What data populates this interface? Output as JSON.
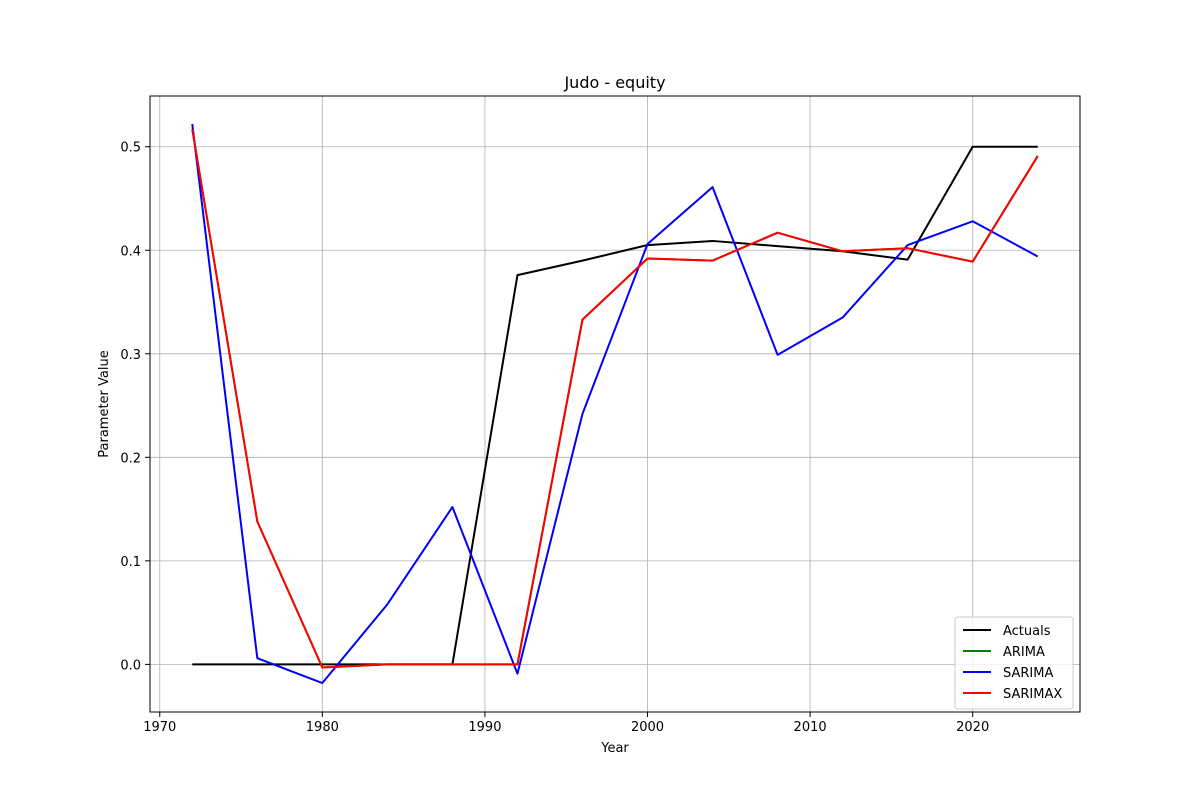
{
  "chart_data": {
    "type": "line",
    "title": "Judo - equity",
    "xlabel": "Year",
    "ylabel": "Parameter Value",
    "xlim": [
      1969.4,
      2026.6
    ],
    "ylim": [
      -0.046,
      0.549
    ],
    "xticks": [
      1970,
      1980,
      1990,
      2000,
      2010,
      2020
    ],
    "yticks": [
      0.0,
      0.1,
      0.2,
      0.3,
      0.4,
      0.5
    ],
    "grid": true,
    "legend_position": "lower-right",
    "x": [
      1972,
      1976,
      1980,
      1984,
      1988,
      1992,
      1996,
      2000,
      2004,
      2008,
      2012,
      2016,
      2020,
      2024
    ],
    "series": [
      {
        "name": "Actuals",
        "color": "#000000",
        "values": [
          0.0,
          0.0,
          0.0,
          0.0,
          0.0,
          0.376,
          0.39,
          0.405,
          0.409,
          0.404,
          0.399,
          0.391,
          0.5,
          0.5
        ]
      },
      {
        "name": "ARIMA",
        "color": "#008000",
        "values": [
          0.517,
          0.138,
          -0.003,
          0.0,
          0.0,
          0.0,
          0.333,
          0.392,
          0.39,
          0.417,
          0.399,
          0.402,
          0.389,
          0.491
        ]
      },
      {
        "name": "SARIMA",
        "color": "#0000ff",
        "values": [
          0.522,
          0.006,
          -0.018,
          0.058,
          0.152,
          -0.009,
          0.242,
          0.406,
          0.461,
          0.299,
          0.335,
          0.405,
          0.428,
          0.394
        ]
      },
      {
        "name": "SARIMAX",
        "color": "#ff0000",
        "values": [
          0.517,
          0.138,
          -0.003,
          0.0,
          0.0,
          0.0,
          0.333,
          0.392,
          0.39,
          0.417,
          0.399,
          0.402,
          0.389,
          0.491
        ]
      }
    ]
  }
}
